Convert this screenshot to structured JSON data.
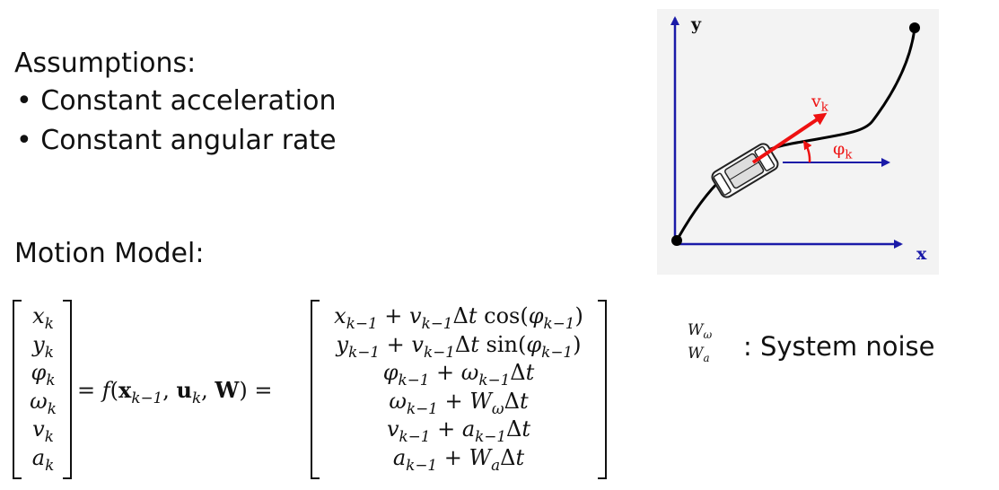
{
  "assumptions": {
    "heading": "Assumptions:",
    "items": [
      "Constant acceleration",
      "Constant angular rate"
    ]
  },
  "motion_model": {
    "heading": "Motion Model:",
    "state_vector": [
      {
        "sym": "x",
        "sub": "k"
      },
      {
        "sym": "y",
        "sub": "k"
      },
      {
        "sym": "φ",
        "sub": "k"
      },
      {
        "sym": "ω",
        "sub": "k"
      },
      {
        "sym": "v",
        "sub": "k"
      },
      {
        "sym": "a",
        "sub": "k"
      }
    ],
    "function_lhs": "= f(x",
    "function_args": [
      "k−1",
      "u",
      "k",
      "W"
    ],
    "equals": "=",
    "rhs_rows": [
      "x_{k−1} + v_{k−1}Δt cos(φ_{k−1})",
      "y_{k−1} + v_{k−1}Δt sin(φ_{k−1})",
      "φ_{k−1} + ω_{k−1}Δt",
      "ω_{k−1} + W_ωΔt",
      "v_{k−1} + a_{k−1}Δt",
      "a_{k−1} + W_aΔt"
    ]
  },
  "noise": {
    "symbols": [
      "Wω",
      "Wa"
    ],
    "label": ": System noise"
  },
  "diagram": {
    "axis_y_label": "y",
    "axis_x_label": "x",
    "velocity_label": "v",
    "velocity_sub": "k",
    "heading_label": "φ",
    "heading_sub": "k",
    "axis_color": "#1a1aa8",
    "vector_color": "#ee1111",
    "background": "#f3f3f3"
  }
}
